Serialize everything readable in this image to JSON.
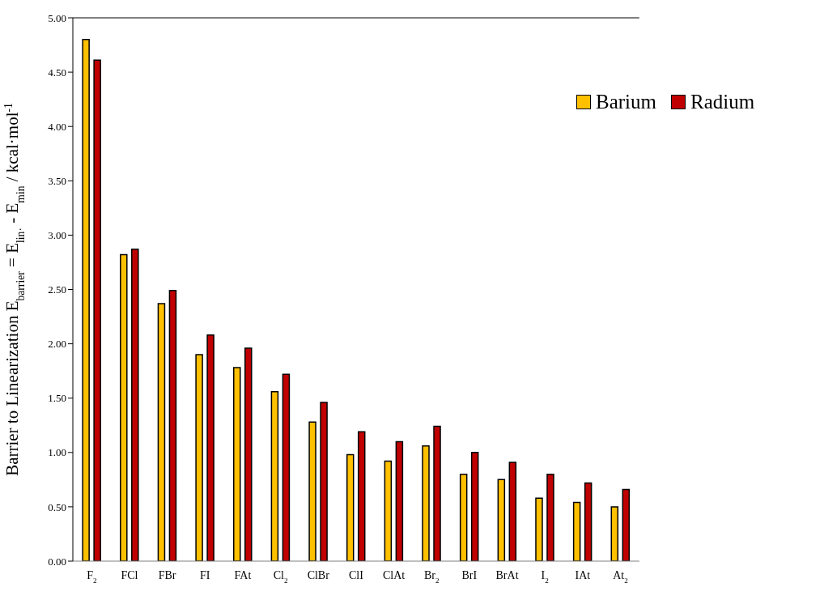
{
  "chart_data": {
    "type": "bar",
    "ylabel": "Barrier to Linearization E$_{barrier}$ = E$_{lin·}$ - E$_{min}$ / kcal·mol$^{-1}$",
    "categories": [
      "F$_{2}$",
      "FCl",
      "FBr",
      "FI",
      "FAt",
      "Cl$_{2}$",
      "ClBr",
      "ClI",
      "ClAt",
      "Br$_{2}$",
      "BrI",
      "BrAt",
      "I$_{2}$",
      "IAt",
      "At$_{2}$"
    ],
    "series": [
      {
        "name": "Barium",
        "color": "#ffc000",
        "values": [
          4.8,
          2.82,
          2.37,
          1.9,
          1.78,
          1.56,
          1.28,
          0.98,
          0.92,
          1.06,
          0.8,
          0.75,
          0.58,
          0.54,
          0.5
        ]
      },
      {
        "name": "Radium",
        "color": "#c00000",
        "values": [
          4.61,
          2.87,
          2.49,
          2.08,
          1.96,
          1.72,
          1.46,
          1.19,
          1.1,
          1.24,
          1.0,
          0.91,
          0.8,
          0.72,
          0.66
        ]
      }
    ],
    "ylim": [
      0,
      5
    ],
    "yticks": [
      {
        "value": 0,
        "label": "0.00"
      },
      {
        "value": 0.5,
        "label": "0.50"
      },
      {
        "value": 1,
        "label": "1.00"
      },
      {
        "value": 1.5,
        "label": "1.50"
      },
      {
        "value": 2,
        "label": "2.00"
      },
      {
        "value": 2.5,
        "label": "2.50"
      },
      {
        "value": 3,
        "label": "3.00"
      },
      {
        "value": 3.5,
        "label": "3.50"
      },
      {
        "value": 4,
        "label": "4.00"
      },
      {
        "value": 4.5,
        "label": "4.50"
      },
      {
        "value": 5,
        "label": "5.00"
      }
    ],
    "grid": false,
    "legend": "top right"
  }
}
